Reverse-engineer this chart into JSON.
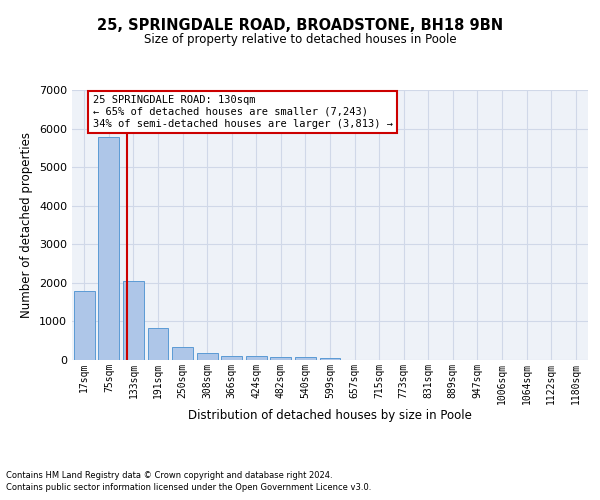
{
  "title_line1": "25, SPRINGDALE ROAD, BROADSTONE, BH18 9BN",
  "title_line2": "Size of property relative to detached houses in Poole",
  "xlabel": "Distribution of detached houses by size in Poole",
  "ylabel": "Number of detached properties",
  "footnote_line1": "Contains HM Land Registry data © Crown copyright and database right 2024.",
  "footnote_line2": "Contains public sector information licensed under the Open Government Licence v3.0.",
  "bin_labels": [
    "17sqm",
    "75sqm",
    "133sqm",
    "191sqm",
    "250sqm",
    "308sqm",
    "366sqm",
    "424sqm",
    "482sqm",
    "540sqm",
    "599sqm",
    "657sqm",
    "715sqm",
    "773sqm",
    "831sqm",
    "889sqm",
    "947sqm",
    "1006sqm",
    "1064sqm",
    "1122sqm",
    "1180sqm"
  ],
  "bar_values": [
    1780,
    5780,
    2060,
    820,
    340,
    185,
    110,
    95,
    80,
    65,
    55,
    0,
    0,
    0,
    0,
    0,
    0,
    0,
    0,
    0,
    0
  ],
  "bar_color": "#aec6e8",
  "bar_edge_color": "#5b9bd5",
  "grid_color": "#d0d8e8",
  "background_color": "#eef2f8",
  "property_line_x": 1.72,
  "annotation_text_line1": "25 SPRINGDALE ROAD: 130sqm",
  "annotation_text_line2": "← 65% of detached houses are smaller (7,243)",
  "annotation_text_line3": "34% of semi-detached houses are larger (3,813) →",
  "annotation_box_color": "#ffffff",
  "annotation_border_color": "#cc0000",
  "vline_color": "#cc0000",
  "ylim": [
    0,
    7000
  ],
  "yticks": [
    0,
    1000,
    2000,
    3000,
    4000,
    5000,
    6000,
    7000
  ]
}
